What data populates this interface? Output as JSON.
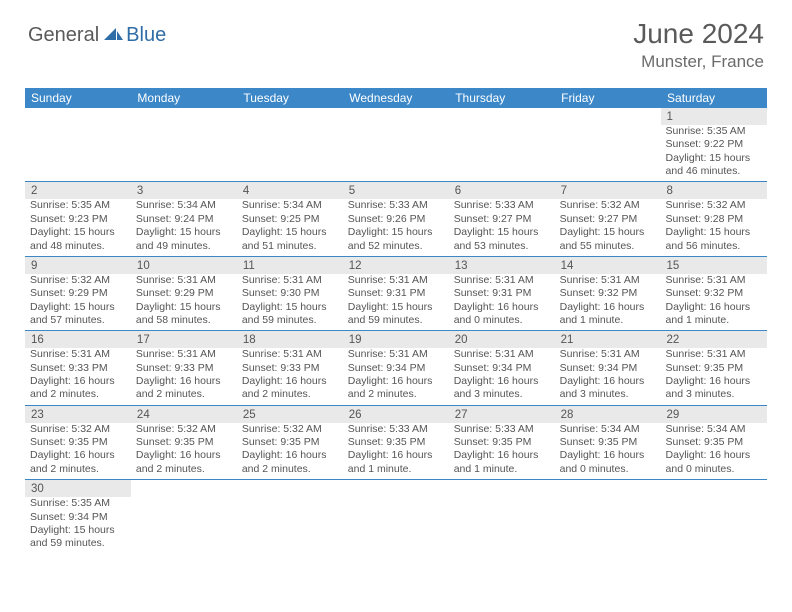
{
  "logo": {
    "word1": "General",
    "word2": "Blue",
    "color1": "#5a5a5a",
    "color2": "#2f6da8"
  },
  "title": "June 2024",
  "location": "Munster, France",
  "header_bg": "#3b87c8",
  "header_fg": "#ffffff",
  "border_color": "#3b87c8",
  "daynum_bg": "#e9e9e9",
  "text_color": "#555555",
  "weekdays": [
    "Sunday",
    "Monday",
    "Tuesday",
    "Wednesday",
    "Thursday",
    "Friday",
    "Saturday"
  ],
  "weeks": [
    [
      null,
      null,
      null,
      null,
      null,
      null,
      {
        "d": "1",
        "l": [
          "Sunrise: 5:35 AM",
          "Sunset: 9:22 PM",
          "Daylight: 15 hours",
          "and 46 minutes."
        ]
      }
    ],
    [
      {
        "d": "2",
        "l": [
          "Sunrise: 5:35 AM",
          "Sunset: 9:23 PM",
          "Daylight: 15 hours",
          "and 48 minutes."
        ]
      },
      {
        "d": "3",
        "l": [
          "Sunrise: 5:34 AM",
          "Sunset: 9:24 PM",
          "Daylight: 15 hours",
          "and 49 minutes."
        ]
      },
      {
        "d": "4",
        "l": [
          "Sunrise: 5:34 AM",
          "Sunset: 9:25 PM",
          "Daylight: 15 hours",
          "and 51 minutes."
        ]
      },
      {
        "d": "5",
        "l": [
          "Sunrise: 5:33 AM",
          "Sunset: 9:26 PM",
          "Daylight: 15 hours",
          "and 52 minutes."
        ]
      },
      {
        "d": "6",
        "l": [
          "Sunrise: 5:33 AM",
          "Sunset: 9:27 PM",
          "Daylight: 15 hours",
          "and 53 minutes."
        ]
      },
      {
        "d": "7",
        "l": [
          "Sunrise: 5:32 AM",
          "Sunset: 9:27 PM",
          "Daylight: 15 hours",
          "and 55 minutes."
        ]
      },
      {
        "d": "8",
        "l": [
          "Sunrise: 5:32 AM",
          "Sunset: 9:28 PM",
          "Daylight: 15 hours",
          "and 56 minutes."
        ]
      }
    ],
    [
      {
        "d": "9",
        "l": [
          "Sunrise: 5:32 AM",
          "Sunset: 9:29 PM",
          "Daylight: 15 hours",
          "and 57 minutes."
        ]
      },
      {
        "d": "10",
        "l": [
          "Sunrise: 5:31 AM",
          "Sunset: 9:29 PM",
          "Daylight: 15 hours",
          "and 58 minutes."
        ]
      },
      {
        "d": "11",
        "l": [
          "Sunrise: 5:31 AM",
          "Sunset: 9:30 PM",
          "Daylight: 15 hours",
          "and 59 minutes."
        ]
      },
      {
        "d": "12",
        "l": [
          "Sunrise: 5:31 AM",
          "Sunset: 9:31 PM",
          "Daylight: 15 hours",
          "and 59 minutes."
        ]
      },
      {
        "d": "13",
        "l": [
          "Sunrise: 5:31 AM",
          "Sunset: 9:31 PM",
          "Daylight: 16 hours",
          "and 0 minutes."
        ]
      },
      {
        "d": "14",
        "l": [
          "Sunrise: 5:31 AM",
          "Sunset: 9:32 PM",
          "Daylight: 16 hours",
          "and 1 minute."
        ]
      },
      {
        "d": "15",
        "l": [
          "Sunrise: 5:31 AM",
          "Sunset: 9:32 PM",
          "Daylight: 16 hours",
          "and 1 minute."
        ]
      }
    ],
    [
      {
        "d": "16",
        "l": [
          "Sunrise: 5:31 AM",
          "Sunset: 9:33 PM",
          "Daylight: 16 hours",
          "and 2 minutes."
        ]
      },
      {
        "d": "17",
        "l": [
          "Sunrise: 5:31 AM",
          "Sunset: 9:33 PM",
          "Daylight: 16 hours",
          "and 2 minutes."
        ]
      },
      {
        "d": "18",
        "l": [
          "Sunrise: 5:31 AM",
          "Sunset: 9:33 PM",
          "Daylight: 16 hours",
          "and 2 minutes."
        ]
      },
      {
        "d": "19",
        "l": [
          "Sunrise: 5:31 AM",
          "Sunset: 9:34 PM",
          "Daylight: 16 hours",
          "and 2 minutes."
        ]
      },
      {
        "d": "20",
        "l": [
          "Sunrise: 5:31 AM",
          "Sunset: 9:34 PM",
          "Daylight: 16 hours",
          "and 3 minutes."
        ]
      },
      {
        "d": "21",
        "l": [
          "Sunrise: 5:31 AM",
          "Sunset: 9:34 PM",
          "Daylight: 16 hours",
          "and 3 minutes."
        ]
      },
      {
        "d": "22",
        "l": [
          "Sunrise: 5:31 AM",
          "Sunset: 9:35 PM",
          "Daylight: 16 hours",
          "and 3 minutes."
        ]
      }
    ],
    [
      {
        "d": "23",
        "l": [
          "Sunrise: 5:32 AM",
          "Sunset: 9:35 PM",
          "Daylight: 16 hours",
          "and 2 minutes."
        ]
      },
      {
        "d": "24",
        "l": [
          "Sunrise: 5:32 AM",
          "Sunset: 9:35 PM",
          "Daylight: 16 hours",
          "and 2 minutes."
        ]
      },
      {
        "d": "25",
        "l": [
          "Sunrise: 5:32 AM",
          "Sunset: 9:35 PM",
          "Daylight: 16 hours",
          "and 2 minutes."
        ]
      },
      {
        "d": "26",
        "l": [
          "Sunrise: 5:33 AM",
          "Sunset: 9:35 PM",
          "Daylight: 16 hours",
          "and 1 minute."
        ]
      },
      {
        "d": "27",
        "l": [
          "Sunrise: 5:33 AM",
          "Sunset: 9:35 PM",
          "Daylight: 16 hours",
          "and 1 minute."
        ]
      },
      {
        "d": "28",
        "l": [
          "Sunrise: 5:34 AM",
          "Sunset: 9:35 PM",
          "Daylight: 16 hours",
          "and 0 minutes."
        ]
      },
      {
        "d": "29",
        "l": [
          "Sunrise: 5:34 AM",
          "Sunset: 9:35 PM",
          "Daylight: 16 hours",
          "and 0 minutes."
        ]
      }
    ],
    [
      {
        "d": "30",
        "l": [
          "Sunrise: 5:35 AM",
          "Sunset: 9:34 PM",
          "Daylight: 15 hours",
          "and 59 minutes."
        ]
      },
      null,
      null,
      null,
      null,
      null,
      null
    ]
  ]
}
